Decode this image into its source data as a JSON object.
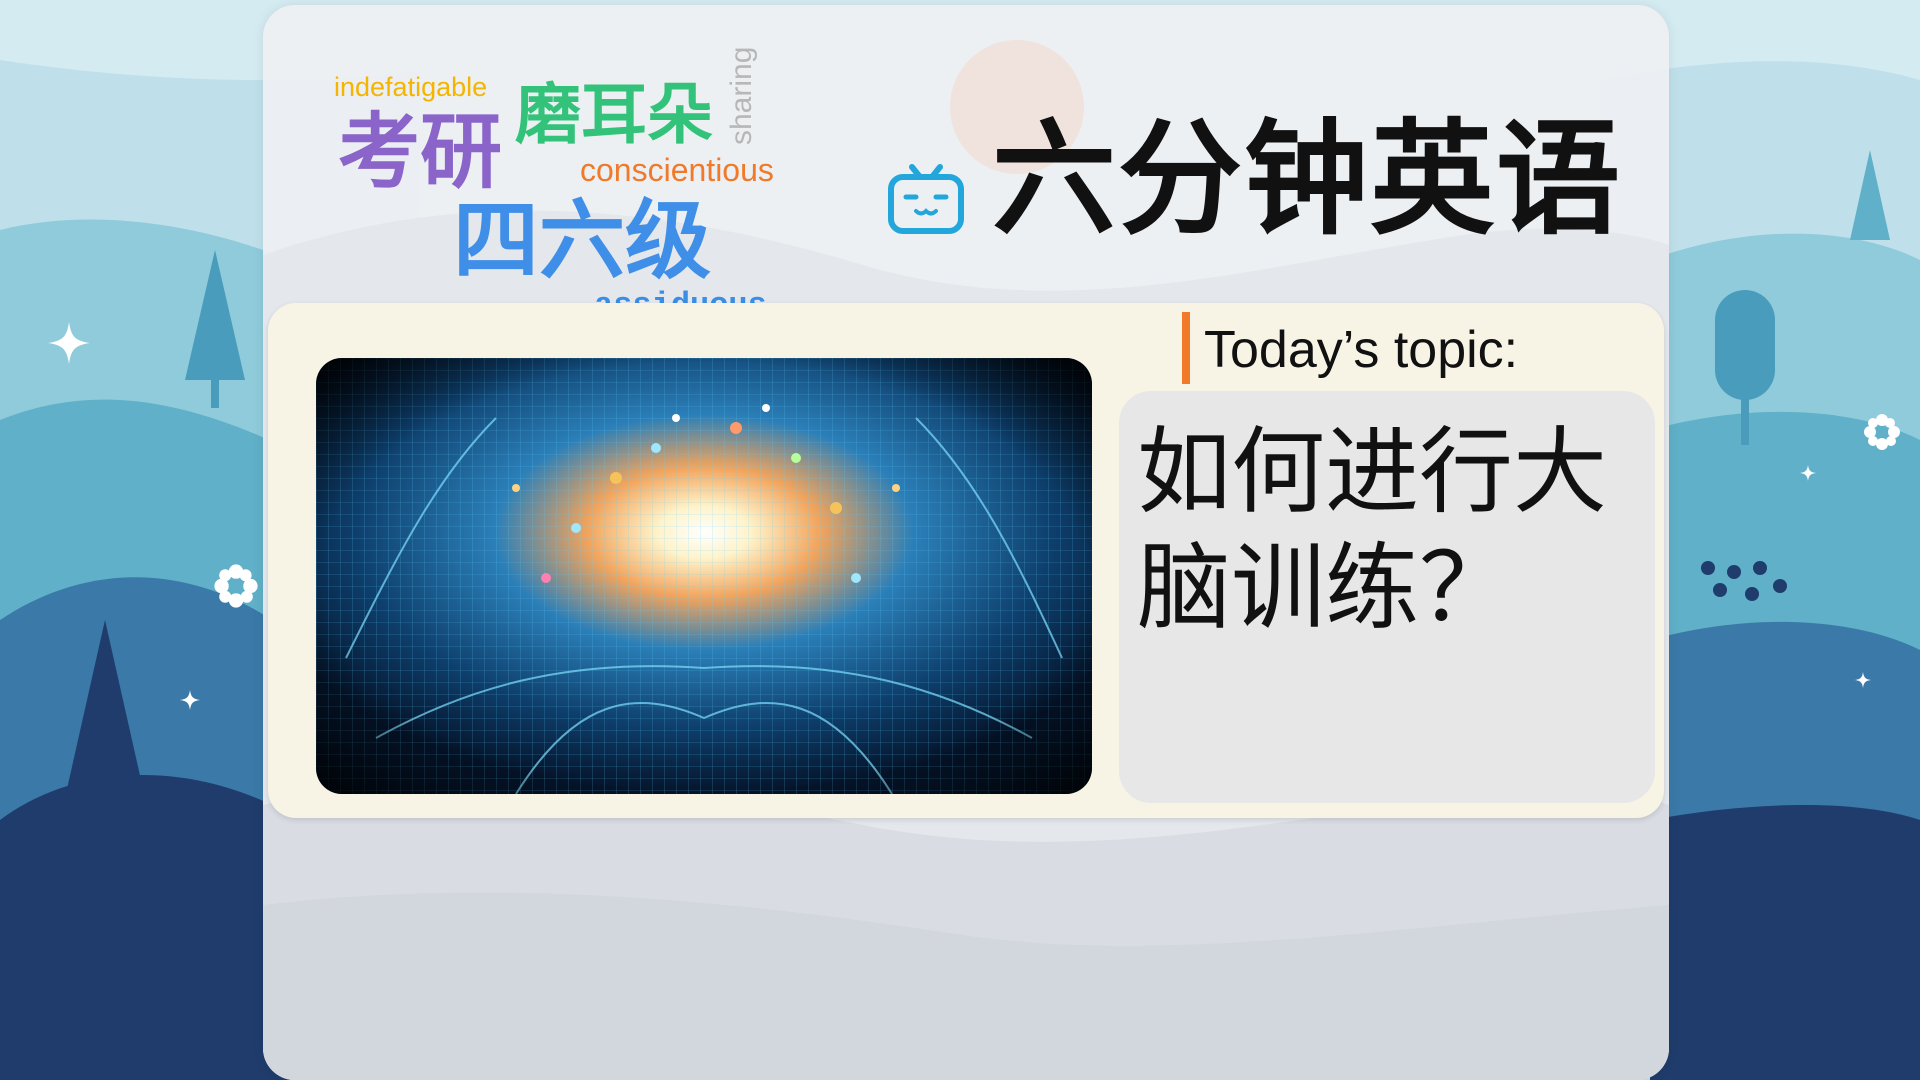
{
  "title": "六分钟英语",
  "word_cloud": [
    "indefatigable",
    "磨耳朵",
    "sharing",
    "考研",
    "conscientious",
    "四六级",
    "assiduous"
  ],
  "topic": {
    "label": "Today’s topic:",
    "text": "如何进行大脑训练？"
  },
  "colors": {
    "accent_orange": "#f07a2a",
    "logo_blue": "#23a6dc",
    "card": "#eef0f3",
    "panel": "#f7f4e6"
  },
  "icons": [
    "tv-logo-icon",
    "sparkle-icon",
    "flower-icon"
  ]
}
